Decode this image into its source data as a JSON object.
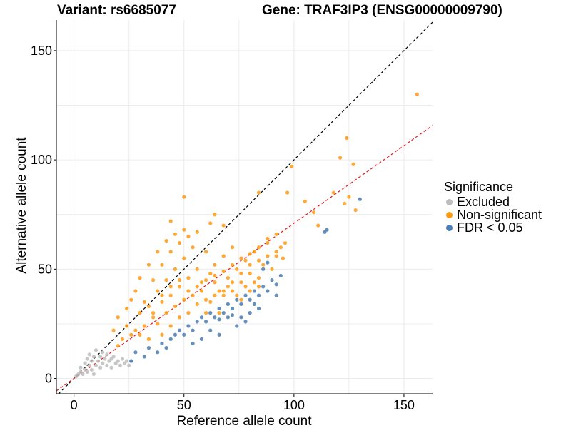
{
  "chart_data": {
    "type": "scatter",
    "title_left": "Variant: rs6685077",
    "title_right": "Gene: TRAF3IP3 (ENSG00000009790)",
    "xlabel": "Reference allele count",
    "ylabel": "Alternative allele count",
    "xlim": [
      -8,
      163
    ],
    "ylim": [
      -7,
      164
    ],
    "xticks": [
      0,
      50,
      100,
      150
    ],
    "yticks": [
      0,
      50,
      100,
      150
    ],
    "grid": true,
    "legend_title": "Significance",
    "legend_position": "right",
    "reference_lines": [
      {
        "name": "identity",
        "slope": 1.0,
        "intercept": 0,
        "color": "#000000",
        "dash": "dashed"
      },
      {
        "name": "fit",
        "slope": 0.71,
        "intercept": 0,
        "color": "#e41a1c",
        "dash": "dashed"
      }
    ],
    "series": [
      {
        "name": "Excluded",
        "color": "#bdbdbd",
        "points": [
          [
            1,
            1
          ],
          [
            2,
            2
          ],
          [
            3,
            3
          ],
          [
            3,
            5
          ],
          [
            4,
            2
          ],
          [
            5,
            4
          ],
          [
            5,
            7
          ],
          [
            6,
            3
          ],
          [
            6,
            9
          ],
          [
            7,
            6
          ],
          [
            7,
            11
          ],
          [
            8,
            4
          ],
          [
            8,
            8
          ],
          [
            9,
            2
          ],
          [
            9,
            10
          ],
          [
            10,
            6
          ],
          [
            10,
            13
          ],
          [
            11,
            8
          ],
          [
            12,
            5
          ],
          [
            12,
            10
          ],
          [
            13,
            7
          ],
          [
            13,
            12
          ],
          [
            14,
            9
          ],
          [
            15,
            6
          ],
          [
            15,
            11
          ],
          [
            16,
            8
          ],
          [
            17,
            9
          ],
          [
            17,
            5
          ],
          [
            18,
            10
          ],
          [
            19,
            7
          ],
          [
            20,
            8
          ],
          [
            21,
            6
          ],
          [
            22,
            9
          ],
          [
            23,
            7
          ],
          [
            24,
            8
          ],
          [
            25,
            6
          ],
          [
            26,
            8
          ]
        ]
      },
      {
        "name": "Non-significant",
        "color": "#ff9a10",
        "points": [
          [
            156,
            130
          ],
          [
            121,
            101
          ],
          [
            124,
            110
          ],
          [
            127,
            98
          ],
          [
            118,
            85
          ],
          [
            125,
            83
          ],
          [
            123,
            80
          ],
          [
            128,
            77
          ],
          [
            99,
            97
          ],
          [
            97,
            85
          ],
          [
            84,
            85
          ],
          [
            105,
            81
          ],
          [
            109,
            76
          ],
          [
            50,
            83
          ],
          [
            64,
            75
          ],
          [
            111,
            70
          ],
          [
            95,
            55
          ],
          [
            68,
            70
          ],
          [
            62,
            71
          ],
          [
            44,
            72
          ],
          [
            28,
            22
          ],
          [
            30,
            30
          ],
          [
            32,
            24
          ],
          [
            34,
            33
          ],
          [
            36,
            28
          ],
          [
            38,
            40
          ],
          [
            40,
            35
          ],
          [
            42,
            45
          ],
          [
            44,
            38
          ],
          [
            46,
            50
          ],
          [
            48,
            42
          ],
          [
            50,
            55
          ],
          [
            52,
            46
          ],
          [
            54,
            60
          ],
          [
            56,
            50
          ],
          [
            58,
            44
          ],
          [
            60,
            58
          ],
          [
            62,
            48
          ],
          [
            64,
            52
          ],
          [
            66,
            40
          ],
          [
            68,
            56
          ],
          [
            70,
            46
          ],
          [
            72,
            60
          ],
          [
            74,
            50
          ],
          [
            76,
            44
          ],
          [
            78,
            54
          ],
          [
            80,
            48
          ],
          [
            82,
            58
          ],
          [
            84,
            46
          ],
          [
            86,
            52
          ],
          [
            88,
            62
          ],
          [
            90,
            50
          ],
          [
            92,
            56
          ],
          [
            94,
            60
          ],
          [
            28,
            40
          ],
          [
            30,
            20
          ],
          [
            32,
            35
          ],
          [
            34,
            18
          ],
          [
            36,
            45
          ],
          [
            38,
            25
          ],
          [
            40,
            52
          ],
          [
            42,
            30
          ],
          [
            44,
            58
          ],
          [
            46,
            33
          ],
          [
            48,
            62
          ],
          [
            50,
            36
          ],
          [
            52,
            65
          ],
          [
            54,
            38
          ],
          [
            56,
            67
          ],
          [
            58,
            40
          ],
          [
            60,
            30
          ],
          [
            62,
            35
          ],
          [
            64,
            44
          ],
          [
            66,
            30
          ],
          [
            68,
            38
          ],
          [
            70,
            42
          ],
          [
            72,
            40
          ],
          [
            74,
            38
          ],
          [
            76,
            36
          ],
          [
            78,
            42
          ],
          [
            80,
            40
          ],
          [
            82,
            44
          ],
          [
            84,
            42
          ],
          [
            20,
            15
          ],
          [
            22,
            18
          ],
          [
            24,
            24
          ],
          [
            26,
            20
          ],
          [
            30,
            46
          ],
          [
            34,
            52
          ],
          [
            38,
            58
          ],
          [
            42,
            63
          ],
          [
            46,
            66
          ],
          [
            50,
            68
          ],
          [
            18,
            22
          ],
          [
            20,
            28
          ],
          [
            24,
            32
          ],
          [
            26,
            36
          ],
          [
            40,
            20
          ],
          [
            44,
            24
          ],
          [
            48,
            28
          ],
          [
            52,
            30
          ],
          [
            56,
            34
          ],
          [
            60,
            36
          ],
          [
            64,
            38
          ],
          [
            68,
            40
          ],
          [
            72,
            44
          ],
          [
            76,
            48
          ],
          [
            80,
            52
          ],
          [
            84,
            54
          ],
          [
            88,
            56
          ],
          [
            92,
            58
          ],
          [
            96,
            62
          ],
          [
            36,
            30
          ],
          [
            40,
            38
          ],
          [
            44,
            42
          ],
          [
            48,
            45
          ],
          [
            52,
            40
          ],
          [
            56,
            42
          ],
          [
            60,
            45
          ],
          [
            64,
            47
          ],
          [
            68,
            49
          ],
          [
            72,
            52
          ],
          [
            76,
            55
          ],
          [
            80,
            57
          ],
          [
            84,
            60
          ],
          [
            88,
            64
          ],
          [
            92,
            66
          ]
        ]
      },
      {
        "name": "FDR < 0.05",
        "color": "#4a7db3",
        "points": [
          [
            130,
            82
          ],
          [
            114,
            67
          ],
          [
            115,
            68
          ],
          [
            26,
            8
          ],
          [
            28,
            12
          ],
          [
            32,
            10
          ],
          [
            34,
            14
          ],
          [
            38,
            12
          ],
          [
            40,
            16
          ],
          [
            42,
            14
          ],
          [
            44,
            18
          ],
          [
            46,
            20
          ],
          [
            48,
            22
          ],
          [
            50,
            20
          ],
          [
            52,
            24
          ],
          [
            54,
            22
          ],
          [
            56,
            26
          ],
          [
            58,
            28
          ],
          [
            60,
            26
          ],
          [
            62,
            30
          ],
          [
            64,
            28
          ],
          [
            66,
            32
          ],
          [
            68,
            30
          ],
          [
            70,
            34
          ],
          [
            72,
            32
          ],
          [
            74,
            36
          ],
          [
            76,
            34
          ],
          [
            78,
            38
          ],
          [
            80,
            36
          ],
          [
            82,
            40
          ],
          [
            84,
            38
          ],
          [
            86,
            42
          ],
          [
            88,
            40
          ],
          [
            90,
            45
          ],
          [
            92,
            43
          ],
          [
            94,
            47
          ],
          [
            92,
            38
          ],
          [
            86,
            50
          ],
          [
            88,
            53
          ],
          [
            66,
            20
          ],
          [
            62,
            22
          ],
          [
            58,
            18
          ],
          [
            54,
            16
          ],
          [
            80,
            30
          ],
          [
            82,
            34
          ],
          [
            84,
            32
          ],
          [
            76,
            28
          ],
          [
            78,
            26
          ],
          [
            74,
            24
          ],
          [
            70,
            28
          ],
          [
            66,
            27
          ],
          [
            72,
            29
          ]
        ]
      }
    ]
  },
  "legend": {
    "title": "Significance",
    "items": [
      {
        "label": "Excluded",
        "color": "#bdbdbd"
      },
      {
        "label": "Non-significant",
        "color": "#ff9a10"
      },
      {
        "label": "FDR < 0.05",
        "color": "#4a7db3"
      }
    ]
  }
}
